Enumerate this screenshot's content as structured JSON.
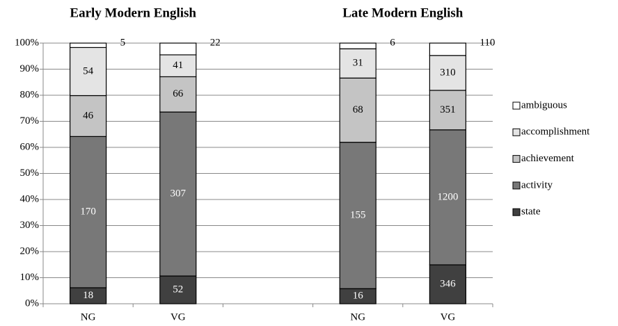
{
  "chart_data": {
    "type": "bar",
    "stacking": "percent",
    "group_titles": [
      "Early Modern English",
      "Late Modern English"
    ],
    "categories": [
      "NG",
      "VG",
      null,
      "NG",
      "VG"
    ],
    "series": [
      {
        "name": "state",
        "color": "#404040",
        "label_color": "#ffffff",
        "values": [
          18,
          52,
          null,
          16,
          346
        ]
      },
      {
        "name": "activity",
        "color": "#787878",
        "label_color": "#ffffff",
        "values": [
          170,
          307,
          null,
          155,
          1200
        ]
      },
      {
        "name": "achievement",
        "color": "#c4c4c4",
        "label_color": "#000000",
        "values": [
          46,
          66,
          null,
          68,
          351
        ]
      },
      {
        "name": "accomplishment",
        "color": "#e4e4e4",
        "label_color": "#000000",
        "values": [
          54,
          41,
          null,
          31,
          310
        ]
      },
      {
        "name": "ambiguous",
        "color": "#ffffff",
        "label_color": "#000000",
        "label_outside": true,
        "values": [
          5,
          22,
          null,
          6,
          110
        ]
      }
    ],
    "ylim": [
      0,
      100
    ],
    "yticks": [
      {
        "value": 0,
        "label": "0%"
      },
      {
        "value": 10,
        "label": "10%"
      },
      {
        "value": 20,
        "label": "20%"
      },
      {
        "value": 30,
        "label": "30%"
      },
      {
        "value": 40,
        "label": "40%"
      },
      {
        "value": 50,
        "label": "50%"
      },
      {
        "value": 60,
        "label": "60%"
      },
      {
        "value": 70,
        "label": "70%"
      },
      {
        "value": 80,
        "label": "80%"
      },
      {
        "value": 90,
        "label": "90%"
      },
      {
        "value": 100,
        "label": "100%"
      }
    ],
    "grid": true,
    "legend": "right"
  }
}
